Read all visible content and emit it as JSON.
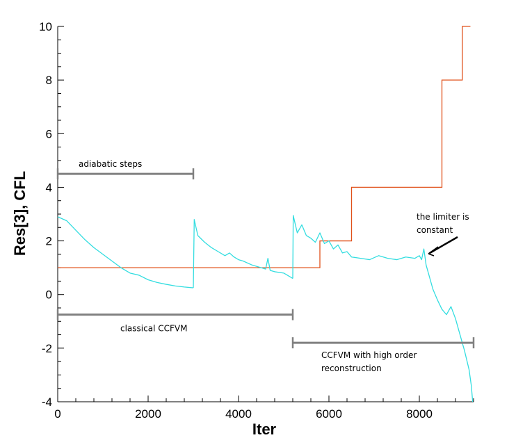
{
  "chart_data": {
    "type": "line",
    "xlabel": "Iter",
    "ylabel": "Res[3], CFL",
    "xlim": [
      0,
      9200
    ],
    "ylim": [
      -4,
      10
    ],
    "x_ticks": [
      "0",
      "2000",
      "4000",
      "6000",
      "8000"
    ],
    "y_ticks": [
      "-4",
      "-2",
      "0",
      "2",
      "4",
      "6",
      "8",
      "10"
    ],
    "grid": false,
    "colors": {
      "residual": "#33dde0",
      "cfl": "#e0501a",
      "bracket": "#808080",
      "arrow": "#000000"
    },
    "series": [
      {
        "key": "cfl",
        "x": [
          0,
          5800,
          5800,
          6500,
          6500,
          8500,
          8500,
          8950,
          8950,
          9130
        ],
        "values": [
          1,
          1,
          2,
          2,
          4,
          4,
          8,
          8,
          10,
          10
        ]
      },
      {
        "key": "residual",
        "segments": [
          {
            "x": [
              0,
              200,
              400,
              600,
              800,
              1000,
              1200,
              1400,
              1600,
              1800,
              2000,
              2200,
              2400,
              2600,
              2800,
              3000
            ],
            "values": [
              2.9,
              2.75,
              2.4,
              2.05,
              1.75,
              1.5,
              1.25,
              1.0,
              0.8,
              0.72,
              0.55,
              0.45,
              0.38,
              0.32,
              0.28,
              0.25
            ]
          },
          {
            "x": [
              3000,
              3020,
              3100,
              3250,
              3400,
              3550,
              3700,
              3800,
              3900,
              4000,
              4100,
              4300,
              4500,
              4600,
              4650,
              4700,
              4800,
              5000,
              5200
            ],
            "values": [
              0.25,
              2.8,
              2.2,
              1.95,
              1.75,
              1.6,
              1.45,
              1.55,
              1.4,
              1.3,
              1.25,
              1.1,
              1.0,
              0.95,
              1.35,
              0.9,
              0.85,
              0.8,
              0.6
            ]
          },
          {
            "x": [
              5200,
              5210,
              5300,
              5400,
              5500,
              5600,
              5700,
              5800,
              5900,
              6000,
              6100,
              6200,
              6300,
              6400,
              6500,
              6700,
              6900,
              7100,
              7300,
              7500,
              7700,
              7900,
              8000,
              8050,
              8100,
              8150,
              8200
            ],
            "values": [
              0.6,
              2.95,
              2.3,
              2.6,
              2.2,
              2.1,
              1.95,
              2.3,
              1.9,
              2.0,
              1.7,
              1.85,
              1.55,
              1.6,
              1.4,
              1.35,
              1.3,
              1.45,
              1.35,
              1.3,
              1.4,
              1.35,
              1.45,
              1.3,
              1.7,
              1.1,
              0.8
            ]
          },
          {
            "x": [
              8200,
              8300,
              8400,
              8500,
              8600,
              8700,
              8800,
              8900,
              9000,
              9100,
              9150,
              9180
            ],
            "values": [
              0.8,
              0.2,
              -0.2,
              -0.55,
              -0.75,
              -0.45,
              -0.9,
              -1.5,
              -2.1,
              -2.8,
              -3.4,
              -4.0
            ]
          }
        ]
      }
    ],
    "brackets": [
      {
        "label": "adiabatic steps",
        "x0": 0,
        "x1": 3000,
        "y": 4.5
      },
      {
        "label": "classical CCFVM",
        "x0": 0,
        "x1": 5200,
        "y": -0.75
      },
      {
        "label": "CCFVM with high order",
        "label2": "reconstruction",
        "x0": 5200,
        "x1": 9200,
        "y": -1.8
      }
    ],
    "annotations": [
      {
        "line1": "the limiter is",
        "line2": "constant"
      }
    ]
  }
}
